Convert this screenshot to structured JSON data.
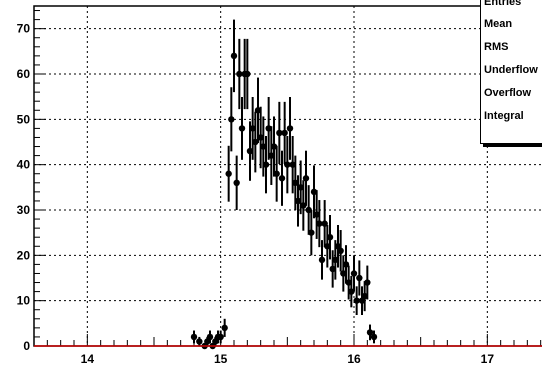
{
  "chart_data": {
    "type": "scatter",
    "title": "",
    "xlabel": "",
    "ylabel": "",
    "xlim": [
      13.6,
      17.5
    ],
    "ylim": [
      0,
      75
    ],
    "x_ticks": [
      "14",
      "15",
      "16",
      "17"
    ],
    "y_ticks": [
      "0",
      "10",
      "20",
      "30",
      "40",
      "50",
      "60",
      "70"
    ],
    "grid": true,
    "series": [
      {
        "marker": "circle",
        "color": "#000000",
        "error_bars": true,
        "points": [
          {
            "x": 14.8,
            "y": 2
          },
          {
            "x": 14.84,
            "y": 1
          },
          {
            "x": 14.88,
            "y": 0
          },
          {
            "x": 14.9,
            "y": 1
          },
          {
            "x": 14.92,
            "y": 2
          },
          {
            "x": 14.94,
            "y": 0
          },
          {
            "x": 14.96,
            "y": 1
          },
          {
            "x": 14.98,
            "y": 2
          },
          {
            "x": 15.0,
            "y": 2
          },
          {
            "x": 15.03,
            "y": 4
          },
          {
            "x": 15.06,
            "y": 38
          },
          {
            "x": 15.08,
            "y": 50
          },
          {
            "x": 15.1,
            "y": 64
          },
          {
            "x": 15.12,
            "y": 36
          },
          {
            "x": 15.14,
            "y": 60
          },
          {
            "x": 15.16,
            "y": 48
          },
          {
            "x": 15.18,
            "y": 60
          },
          {
            "x": 15.2,
            "y": 60
          },
          {
            "x": 15.22,
            "y": 43
          },
          {
            "x": 15.24,
            "y": 48
          },
          {
            "x": 15.26,
            "y": 45
          },
          {
            "x": 15.28,
            "y": 52
          },
          {
            "x": 15.3,
            "y": 46
          },
          {
            "x": 15.32,
            "y": 44
          },
          {
            "x": 15.34,
            "y": 40
          },
          {
            "x": 15.36,
            "y": 48
          },
          {
            "x": 15.38,
            "y": 42
          },
          {
            "x": 15.4,
            "y": 44
          },
          {
            "x": 15.42,
            "y": 38
          },
          {
            "x": 15.44,
            "y": 47
          },
          {
            "x": 15.46,
            "y": 37
          },
          {
            "x": 15.48,
            "y": 47
          },
          {
            "x": 15.5,
            "y": 40
          },
          {
            "x": 15.52,
            "y": 48
          },
          {
            "x": 15.54,
            "y": 40
          },
          {
            "x": 15.56,
            "y": 36
          },
          {
            "x": 15.58,
            "y": 32
          },
          {
            "x": 15.6,
            "y": 35
          },
          {
            "x": 15.62,
            "y": 31
          },
          {
            "x": 15.64,
            "y": 37
          },
          {
            "x": 15.66,
            "y": 30
          },
          {
            "x": 15.68,
            "y": 25
          },
          {
            "x": 15.7,
            "y": 34
          },
          {
            "x": 15.72,
            "y": 29
          },
          {
            "x": 15.74,
            "y": 27
          },
          {
            "x": 15.76,
            "y": 19
          },
          {
            "x": 15.78,
            "y": 27
          },
          {
            "x": 15.8,
            "y": 22
          },
          {
            "x": 15.82,
            "y": 24
          },
          {
            "x": 15.84,
            "y": 17
          },
          {
            "x": 15.86,
            "y": 19
          },
          {
            "x": 15.88,
            "y": 22
          },
          {
            "x": 15.9,
            "y": 21
          },
          {
            "x": 15.92,
            "y": 16
          },
          {
            "x": 15.94,
            "y": 18
          },
          {
            "x": 15.96,
            "y": 14
          },
          {
            "x": 15.98,
            "y": 12
          },
          {
            "x": 16.0,
            "y": 16
          },
          {
            "x": 16.02,
            "y": 10
          },
          {
            "x": 16.04,
            "y": 15
          },
          {
            "x": 16.06,
            "y": 10
          },
          {
            "x": 16.08,
            "y": 11
          },
          {
            "x": 16.1,
            "y": 14
          },
          {
            "x": 16.12,
            "y": 3
          },
          {
            "x": 16.15,
            "y": 2
          }
        ]
      }
    ]
  },
  "stats_box": {
    "labels": [
      "Entries",
      "Mean",
      "RMS",
      "Underflow",
      "Overflow",
      "Integral"
    ]
  }
}
